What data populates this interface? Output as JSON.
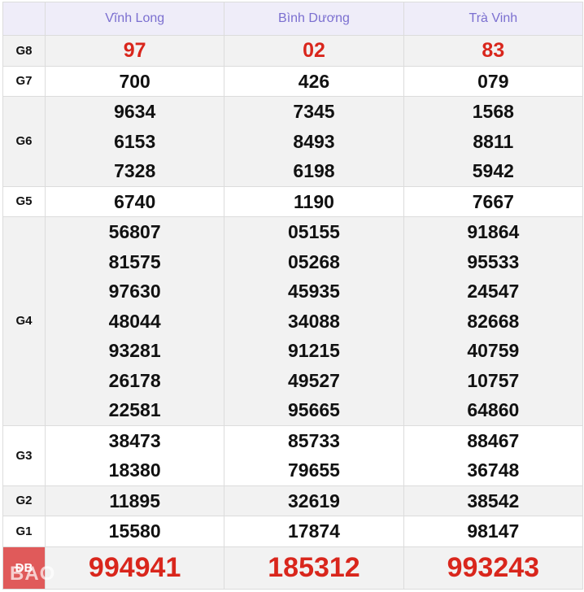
{
  "headers": [
    "Vĩnh Long",
    "Bình Dương",
    "Trà Vinh"
  ],
  "rows": [
    {
      "label": "G8",
      "values": [
        [
          "97"
        ],
        [
          "02"
        ],
        [
          "83"
        ]
      ]
    },
    {
      "label": "G7",
      "values": [
        [
          "700"
        ],
        [
          "426"
        ],
        [
          "079"
        ]
      ]
    },
    {
      "label": "G6",
      "values": [
        [
          "9634",
          "6153",
          "7328"
        ],
        [
          "7345",
          "8493",
          "6198"
        ],
        [
          "1568",
          "8811",
          "5942"
        ]
      ]
    },
    {
      "label": "G5",
      "values": [
        [
          "6740"
        ],
        [
          "1190"
        ],
        [
          "7667"
        ]
      ]
    },
    {
      "label": "G4",
      "values": [
        [
          "56807",
          "81575",
          "97630",
          "48044",
          "93281",
          "26178",
          "22581"
        ],
        [
          "05155",
          "05268",
          "45935",
          "34088",
          "91215",
          "49527",
          "95665"
        ],
        [
          "91864",
          "95533",
          "24547",
          "82668",
          "40759",
          "10757",
          "64860"
        ]
      ]
    },
    {
      "label": "G3",
      "values": [
        [
          "38473",
          "18380"
        ],
        [
          "85733",
          "79655"
        ],
        [
          "88467",
          "36748"
        ]
      ]
    },
    {
      "label": "G2",
      "values": [
        [
          "11895"
        ],
        [
          "32619"
        ],
        [
          "38542"
        ]
      ]
    },
    {
      "label": "G1",
      "values": [
        [
          "15580"
        ],
        [
          "17874"
        ],
        [
          "98147"
        ]
      ]
    },
    {
      "label": "ĐB",
      "values": [
        [
          "994941"
        ],
        [
          "185312"
        ],
        [
          "993243"
        ]
      ]
    }
  ],
  "watermark": "BAO",
  "colors": {
    "prize_red": "#d9261c",
    "header_text": "#7b6fd0",
    "db_label_bg": "#e05a5a"
  }
}
